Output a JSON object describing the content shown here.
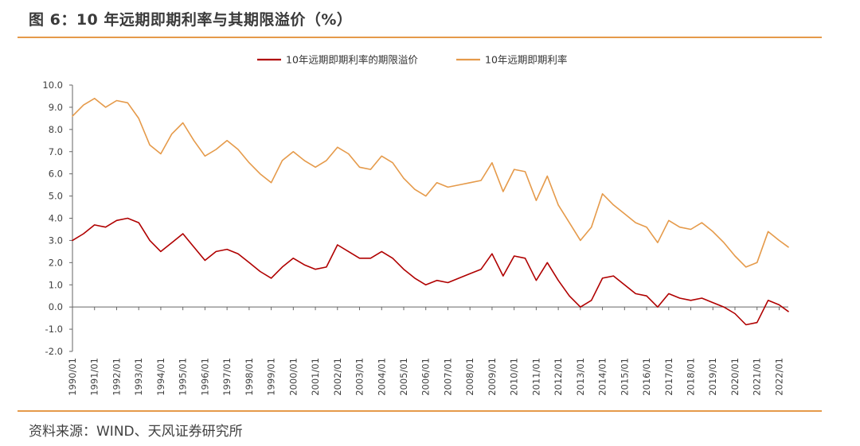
{
  "figure": {
    "title": "图 6：10 年远期即期利率与其期限溢价（%）",
    "source": "资料来源：WIND、天风证券研究所",
    "accent_color": "#E59A4A"
  },
  "chart_data": {
    "type": "line",
    "title": "",
    "xlabel": "",
    "ylabel": "",
    "ylim": [
      -2.0,
      10.0
    ],
    "yticks": [
      "10.0",
      "9.0",
      "8.0",
      "7.0",
      "6.0",
      "5.0",
      "4.0",
      "3.0",
      "2.0",
      "1.0",
      "0.0",
      "-1.0",
      "-2.0"
    ],
    "ytick_values": [
      10,
      9,
      8,
      7,
      6,
      5,
      4,
      3,
      2,
      1,
      0,
      -1,
      -2
    ],
    "negative_tick_color": "#C00000",
    "xlim": [
      "1990/01",
      "2022/06"
    ],
    "xticks": [
      "1990/01",
      "1991/01",
      "1992/01",
      "1993/01",
      "1994/01",
      "1995/01",
      "1996/01",
      "1997/01",
      "1998/01",
      "1999/01",
      "2000/01",
      "2001/01",
      "2002/01",
      "2003/01",
      "2004/01",
      "2005/01",
      "2006/01",
      "2007/01",
      "2008/01",
      "2009/01",
      "2010/01",
      "2011/01",
      "2012/01",
      "2013/01",
      "2014/01",
      "2015/01",
      "2016/01",
      "2017/01",
      "2018/01",
      "2019/01",
      "2020/01",
      "2021/01",
      "2022/01"
    ],
    "grid": false,
    "legend_position": "top-center",
    "series": [
      {
        "name": "10年远期即期利率的期限溢价",
        "color": "#B00000",
        "x": [
          "1990/01",
          "1990/07",
          "1991/01",
          "1991/07",
          "1992/01",
          "1992/07",
          "1993/01",
          "1993/07",
          "1994/01",
          "1994/07",
          "1995/01",
          "1995/07",
          "1996/01",
          "1996/07",
          "1997/01",
          "1997/07",
          "1998/01",
          "1998/07",
          "1999/01",
          "1999/07",
          "2000/01",
          "2000/07",
          "2001/01",
          "2001/07",
          "2002/01",
          "2002/07",
          "2003/01",
          "2003/07",
          "2004/01",
          "2004/07",
          "2005/01",
          "2005/07",
          "2006/01",
          "2006/07",
          "2007/01",
          "2007/07",
          "2008/01",
          "2008/07",
          "2009/01",
          "2009/07",
          "2010/01",
          "2010/07",
          "2011/01",
          "2011/07",
          "2012/01",
          "2012/07",
          "2013/01",
          "2013/07",
          "2014/01",
          "2014/07",
          "2015/01",
          "2015/07",
          "2016/01",
          "2016/07",
          "2017/01",
          "2017/07",
          "2018/01",
          "2018/07",
          "2019/01",
          "2019/07",
          "2020/01",
          "2020/07",
          "2021/01",
          "2021/07",
          "2022/01",
          "2022/06"
        ],
        "values": [
          3.0,
          3.3,
          3.7,
          3.6,
          3.9,
          4.0,
          3.8,
          3.0,
          2.5,
          2.9,
          3.3,
          2.7,
          2.1,
          2.5,
          2.6,
          2.4,
          2.0,
          1.6,
          1.3,
          1.8,
          2.2,
          1.9,
          1.7,
          1.8,
          2.8,
          2.5,
          2.2,
          2.2,
          2.5,
          2.2,
          1.7,
          1.3,
          1.0,
          1.2,
          1.1,
          1.3,
          1.5,
          1.7,
          2.4,
          1.4,
          2.3,
          2.2,
          1.2,
          2.0,
          1.2,
          0.5,
          0.0,
          0.3,
          1.3,
          1.4,
          1.0,
          0.6,
          0.5,
          0.0,
          0.6,
          0.4,
          0.3,
          0.4,
          0.2,
          0.0,
          -0.3,
          -0.8,
          -0.7,
          0.3,
          0.1,
          -0.2
        ]
      },
      {
        "name": "10年远期即期利率",
        "color": "#E59A4A",
        "x": [
          "1990/01",
          "1990/07",
          "1991/01",
          "1991/07",
          "1992/01",
          "1992/07",
          "1993/01",
          "1993/07",
          "1994/01",
          "1994/07",
          "1995/01",
          "1995/07",
          "1996/01",
          "1996/07",
          "1997/01",
          "1997/07",
          "1998/01",
          "1998/07",
          "1999/01",
          "1999/07",
          "2000/01",
          "2000/07",
          "2001/01",
          "2001/07",
          "2002/01",
          "2002/07",
          "2003/01",
          "2003/07",
          "2004/01",
          "2004/07",
          "2005/01",
          "2005/07",
          "2006/01",
          "2006/07",
          "2007/01",
          "2007/07",
          "2008/01",
          "2008/07",
          "2009/01",
          "2009/07",
          "2010/01",
          "2010/07",
          "2011/01",
          "2011/07",
          "2012/01",
          "2012/07",
          "2013/01",
          "2013/07",
          "2014/01",
          "2014/07",
          "2015/01",
          "2015/07",
          "2016/01",
          "2016/07",
          "2017/01",
          "2017/07",
          "2018/01",
          "2018/07",
          "2019/01",
          "2019/07",
          "2020/01",
          "2020/07",
          "2021/01",
          "2021/07",
          "2022/01",
          "2022/06"
        ],
        "values": [
          8.6,
          9.1,
          9.4,
          9.0,
          9.3,
          9.2,
          8.5,
          7.3,
          6.9,
          7.8,
          8.3,
          7.5,
          6.8,
          7.1,
          7.5,
          7.1,
          6.5,
          6.0,
          5.6,
          6.6,
          7.0,
          6.6,
          6.3,
          6.6,
          7.2,
          6.9,
          6.3,
          6.2,
          6.8,
          6.5,
          5.8,
          5.3,
          5.0,
          5.6,
          5.4,
          5.5,
          5.6,
          5.7,
          6.5,
          5.2,
          6.2,
          6.1,
          4.8,
          5.9,
          4.6,
          3.8,
          3.0,
          3.6,
          5.1,
          4.6,
          4.2,
          3.8,
          3.6,
          2.9,
          3.9,
          3.6,
          3.5,
          3.8,
          3.4,
          2.9,
          2.3,
          1.8,
          2.0,
          3.4,
          3.0,
          2.7
        ]
      }
    ]
  }
}
